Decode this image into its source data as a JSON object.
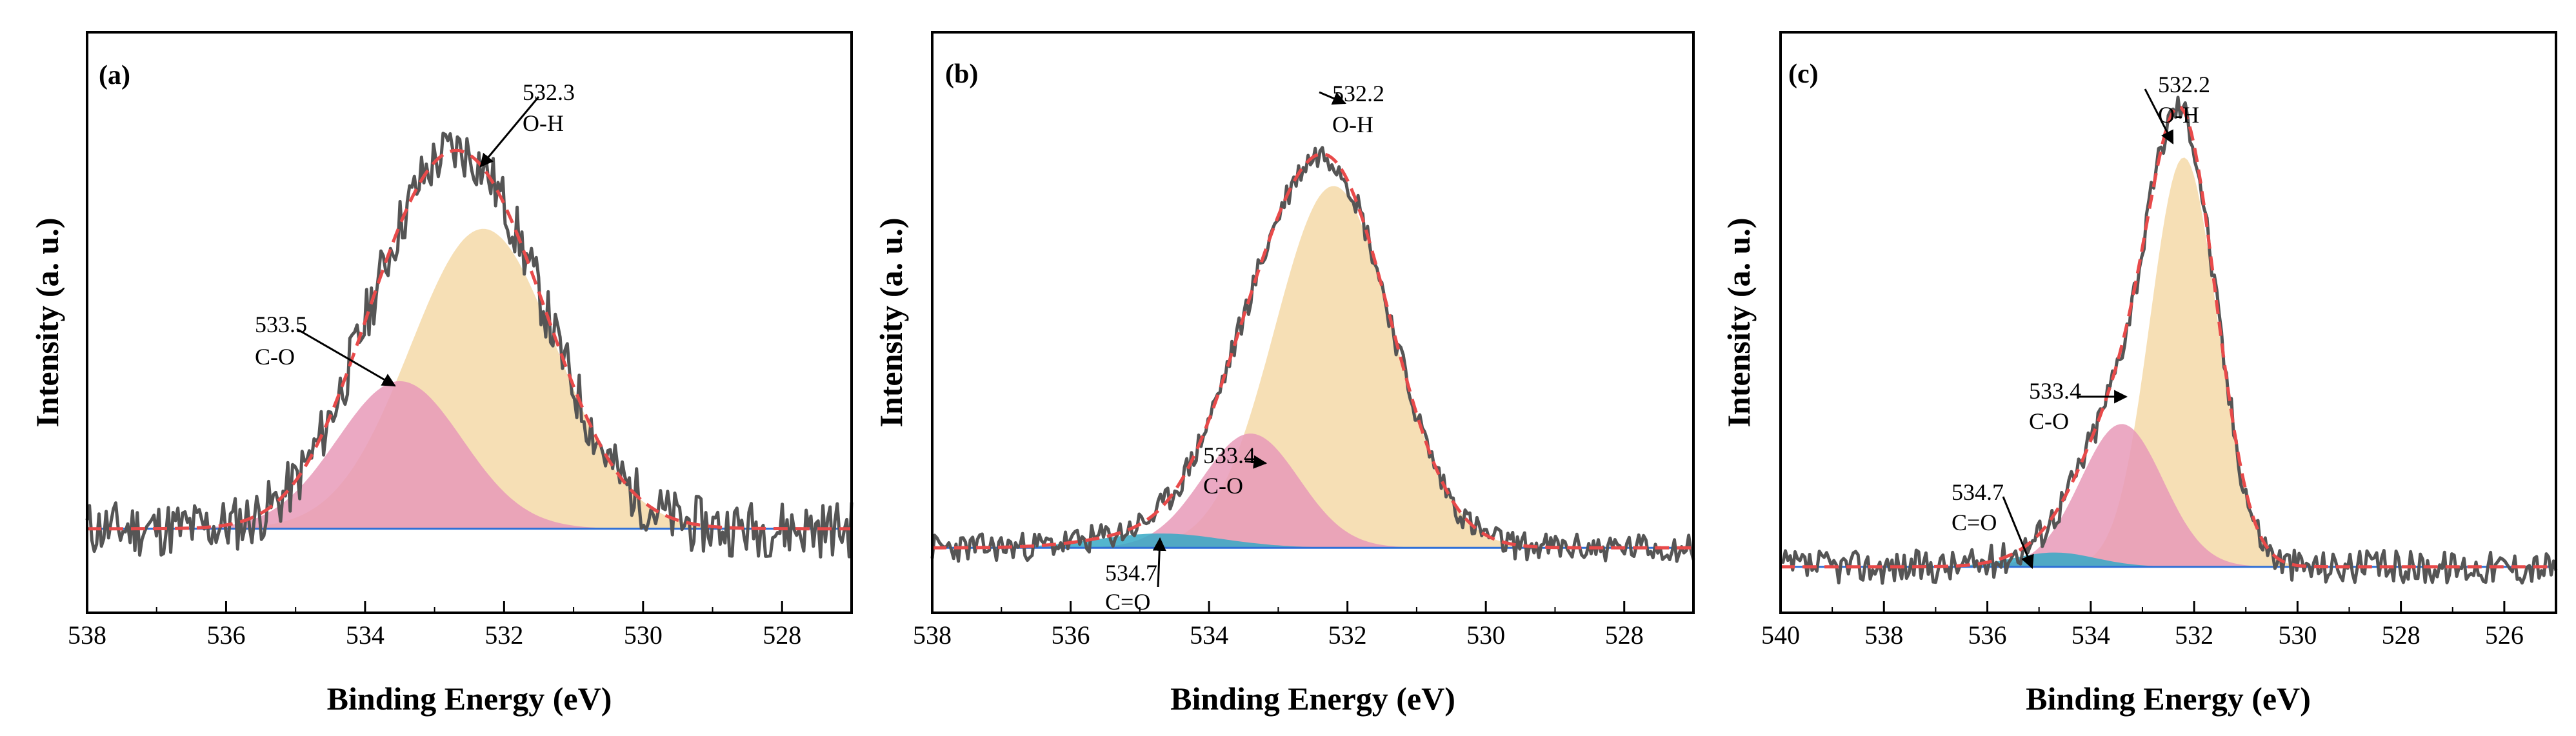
{
  "figure": {
    "background": "#ffffff",
    "colors": {
      "raw_line": "#555555",
      "envelope": "#e84a4a",
      "background_line": "#2e6fd6",
      "oh_fill": "#f5d9a8",
      "co_fill": "#e79ab8",
      "ceo_fill": "#36a9c6"
    }
  },
  "chart_data": [
    {
      "type": "line",
      "panel": "(a)",
      "title": "(a)",
      "xlabel": "Binding Energy (eV)",
      "ylabel": "Intensity (a. u.)",
      "xlim": [
        538,
        527
      ],
      "ylim": [
        0,
        1
      ],
      "xticks": [
        "538",
        "536",
        "534",
        "532",
        "530",
        "528"
      ],
      "xtick_values": [
        538,
        536,
        534,
        532,
        530,
        528
      ],
      "baseline": 0.14,
      "noise_amp": 0.06,
      "seed": 11,
      "peaks": [
        {
          "name": "O-H",
          "center": 532.3,
          "amplitude": 0.63,
          "width": 1.05
        },
        {
          "name": "C-O",
          "center": 533.5,
          "amplitude": 0.31,
          "width": 0.9
        }
      ],
      "annotations": [
        {
          "value": "532.3",
          "label": "O-H"
        },
        {
          "value": "533.5",
          "label": "C-O"
        }
      ]
    },
    {
      "type": "line",
      "panel": "(b)",
      "title": "(b)",
      "xlabel": "Binding Energy (eV)",
      "ylabel": "Intensity (a. u.)",
      "xlim": [
        538,
        527
      ],
      "ylim": [
        0,
        1
      ],
      "xticks": [
        "538",
        "536",
        "534",
        "532",
        "530",
        "528"
      ],
      "xtick_values": [
        538,
        536,
        534,
        532,
        530,
        528
      ],
      "baseline": 0.1,
      "noise_amp": 0.03,
      "seed": 23,
      "peaks": [
        {
          "name": "O-H",
          "center": 532.2,
          "amplitude": 0.76,
          "width": 0.85
        },
        {
          "name": "C-O",
          "center": 533.4,
          "amplitude": 0.24,
          "width": 0.7
        },
        {
          "name": "C=O",
          "center": 534.7,
          "amplitude": 0.03,
          "width": 0.9
        }
      ],
      "annotations": [
        {
          "value": "532.2",
          "label": "O-H"
        },
        {
          "value": "533.4",
          "label": "C-O"
        },
        {
          "value": "534.7",
          "label": "C=O"
        }
      ]
    },
    {
      "type": "line",
      "panel": "(c)",
      "title": "(c)",
      "xlabel": "Binding Energy (eV)",
      "ylabel": "Intensity (a. u.)",
      "xlim": [
        540,
        525
      ],
      "ylim": [
        0,
        1
      ],
      "xticks": [
        "540",
        "538",
        "536",
        "534",
        "532",
        "530",
        "528",
        "526"
      ],
      "xtick_values": [
        540,
        538,
        536,
        534,
        532,
        530,
        528,
        526
      ],
      "baseline": 0.06,
      "noise_amp": 0.035,
      "seed": 37,
      "peaks": [
        {
          "name": "O-H",
          "center": 532.2,
          "amplitude": 0.86,
          "width": 0.65
        },
        {
          "name": "C-O",
          "center": 533.4,
          "amplitude": 0.3,
          "width": 0.8
        },
        {
          "name": "C=O",
          "center": 534.7,
          "amplitude": 0.03,
          "width": 0.8
        }
      ],
      "annotations": [
        {
          "value": "532.2",
          "label": "O-H"
        },
        {
          "value": "533.4",
          "label": "C-O"
        },
        {
          "value": "534.7",
          "label": "C=O"
        }
      ]
    }
  ]
}
